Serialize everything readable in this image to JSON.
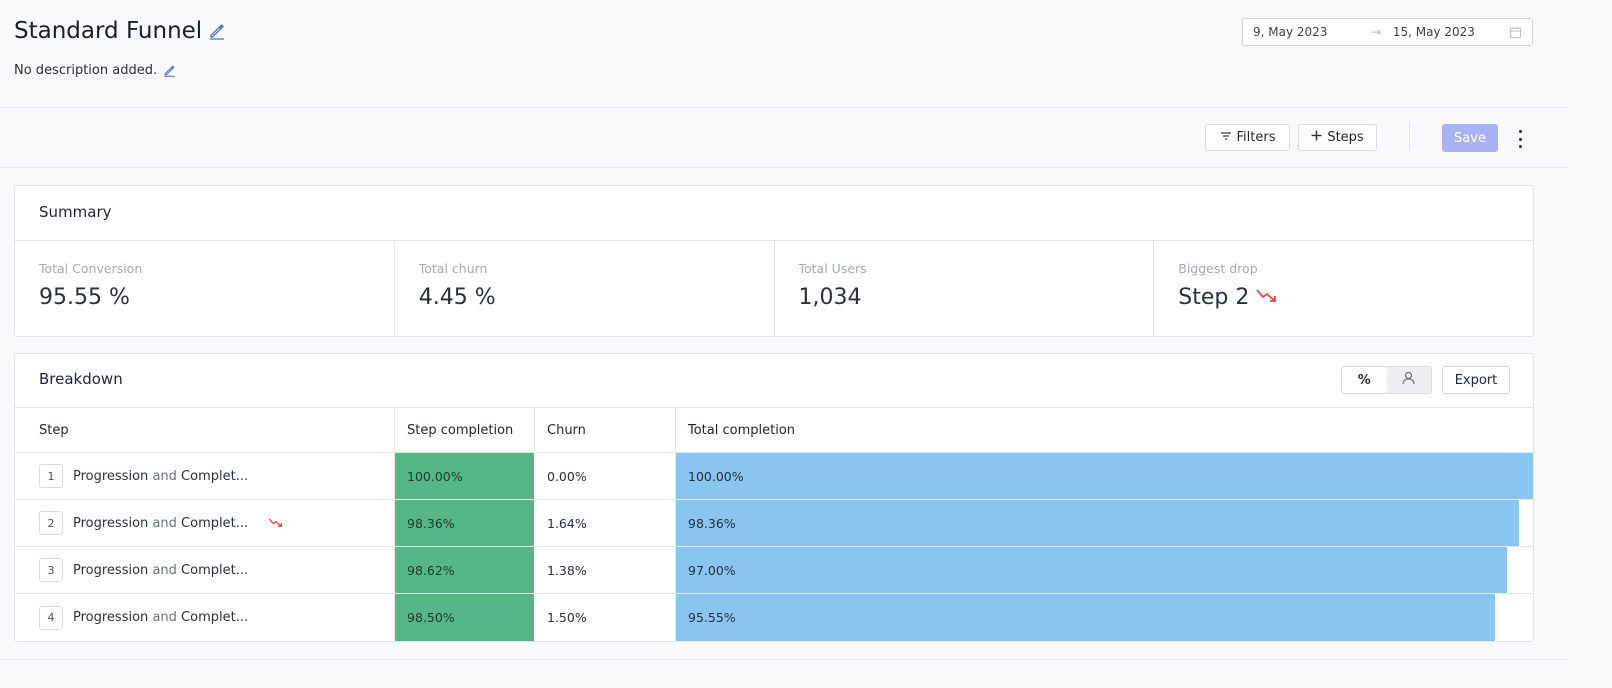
{
  "header": {
    "title": "Standard Funnel",
    "description": "No description added.",
    "date_start": "9, May 2023",
    "date_arrow": "→",
    "date_end": "15, May 2023"
  },
  "toolbar": {
    "filters_label": "Filters",
    "steps_label": "Steps",
    "save_label": "Save"
  },
  "summary": {
    "title": "Summary",
    "metrics": [
      {
        "label": "Total Conversion",
        "value": "95.55 %"
      },
      {
        "label": "Total churn",
        "value": "4.45 %"
      },
      {
        "label": "Total Users",
        "value": "1,034"
      },
      {
        "label": "Biggest drop",
        "value": "Step 2"
      }
    ]
  },
  "breakdown": {
    "title": "Breakdown",
    "toggle_percent": "%",
    "export_label": "Export",
    "columns": [
      "Step",
      "Step completion",
      "Churn",
      "Total completion"
    ],
    "rows": [
      {
        "num": "1",
        "name_a": "Progression",
        "name_and": "and",
        "name_b": "Complet...",
        "completion": "100.00%",
        "churn": "0.00%",
        "total": "100.00%",
        "total_value": 100.0,
        "biggest_drop": false
      },
      {
        "num": "2",
        "name_a": "Progression",
        "name_and": "and",
        "name_b": "Complet...",
        "completion": "98.36%",
        "churn": "1.64%",
        "total": "98.36%",
        "total_value": 98.36,
        "biggest_drop": true
      },
      {
        "num": "3",
        "name_a": "Progression",
        "name_and": "and",
        "name_b": "Complet...",
        "completion": "98.62%",
        "churn": "1.38%",
        "total": "97.00%",
        "total_value": 97.0,
        "biggest_drop": false
      },
      {
        "num": "4",
        "name_a": "Progression",
        "name_and": "and",
        "name_b": "Complet...",
        "completion": "98.50%",
        "churn": "1.50%",
        "total": "95.55%",
        "total_value": 95.55,
        "biggest_drop": false
      }
    ]
  },
  "colors": {
    "accent": "#5c6bd6",
    "save_disabled": "#a9b2f3",
    "completion_green": "#55b786",
    "total_blue": "#8ac5ef",
    "drop_red": "#e5484d"
  },
  "icons": [
    "pencil-icon",
    "calendar-icon",
    "filter-icon",
    "plus-icon",
    "kebab-icon",
    "trend-down-icon",
    "percent-icon",
    "user-icon"
  ]
}
